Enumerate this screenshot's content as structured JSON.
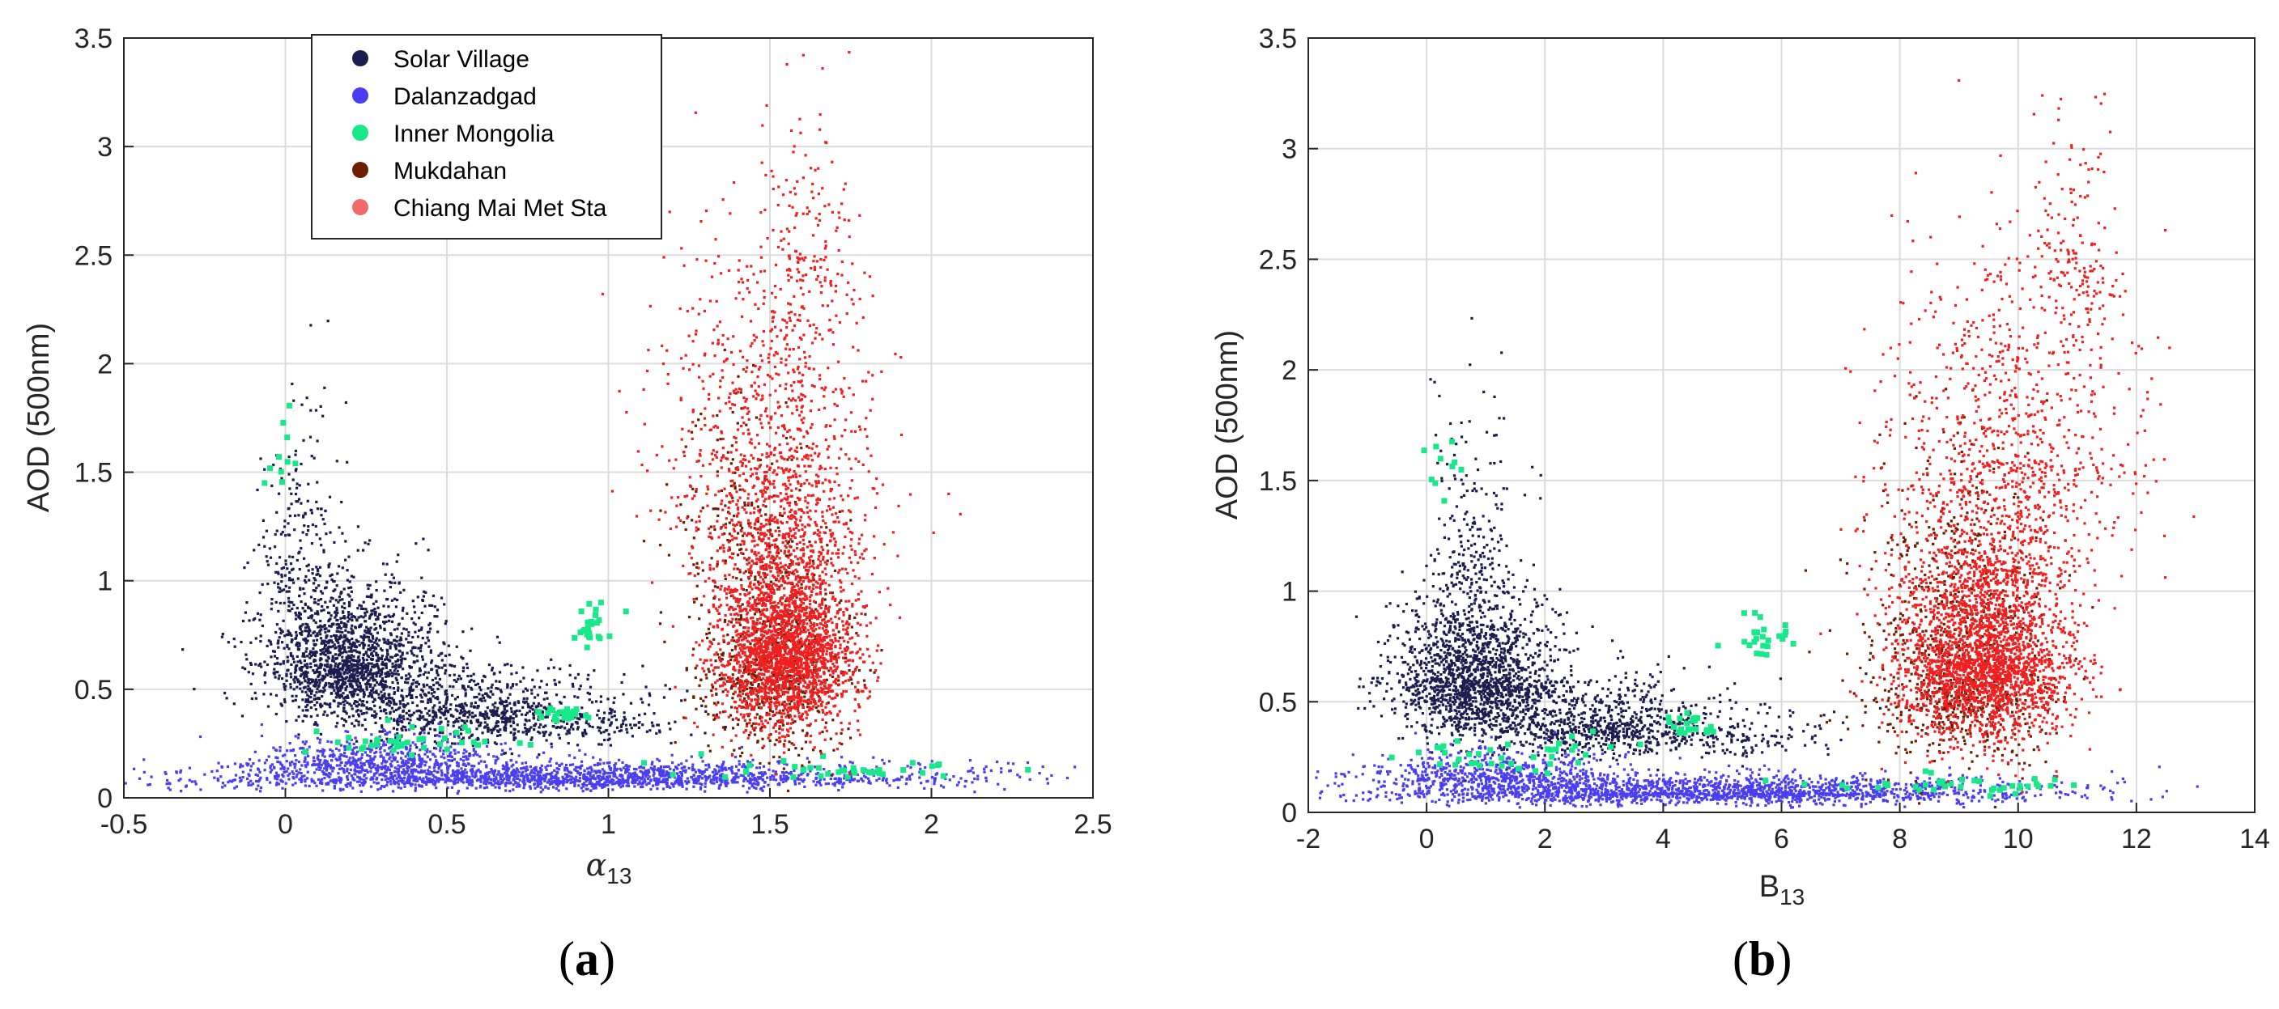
{
  "chart_data": [
    {
      "panel": "(a)",
      "type": "scatter",
      "xlabel": "α",
      "xlabel_sub": "13",
      "ylabel": "AOD (500nm)",
      "xlim": [
        -0.5,
        2.5
      ],
      "ylim": [
        0,
        3.5
      ],
      "xticks": [
        "-0.5",
        "0",
        "0.5",
        "1",
        "1.5",
        "2",
        "2.5"
      ],
      "xtick_values": [
        -0.5,
        0,
        0.5,
        1,
        1.5,
        2,
        2.5
      ],
      "yticks": [
        "0",
        "0.5",
        "1",
        "1.5",
        "2",
        "2.5",
        "3",
        "3.5"
      ],
      "ytick_values": [
        0,
        0.5,
        1,
        1.5,
        2,
        2.5,
        3,
        3.5
      ],
      "grid": true,
      "legend_position": "top-left",
      "series": [
        {
          "name": "Solar Village",
          "color": "#1c1c4e",
          "cloud": [
            {
              "x": 0.2,
              "y": 0.62,
              "sx": 0.14,
              "sy": 0.2,
              "n": 1600
            },
            {
              "x": 0.55,
              "y": 0.4,
              "sx": 0.2,
              "sy": 0.12,
              "n": 700
            },
            {
              "x": 0.05,
              "y": 1.1,
              "sx": 0.06,
              "sy": 0.35,
              "n": 220
            },
            {
              "x": 0.9,
              "y": 0.35,
              "sx": 0.2,
              "sy": 0.08,
              "n": 200
            }
          ]
        },
        {
          "name": "Dalanzadgad",
          "color": "#4a3ef0",
          "cloud": [
            {
              "x": 0.9,
              "y": 0.09,
              "sx": 0.55,
              "sy": 0.04,
              "n": 1900
            },
            {
              "x": 0.3,
              "y": 0.18,
              "sx": 0.2,
              "sy": 0.06,
              "n": 500
            }
          ]
        },
        {
          "name": "Inner Mongolia",
          "color": "#19e88a",
          "cloud": [
            {
              "x": 0.95,
              "y": 0.78,
              "sx": 0.03,
              "sy": 0.06,
              "n": 25
            },
            {
              "x": 0.87,
              "y": 0.38,
              "sx": 0.04,
              "sy": 0.03,
              "n": 25
            },
            {
              "x": 0.35,
              "y": 0.25,
              "sx": 0.15,
              "sy": 0.05,
              "n": 40
            },
            {
              "x": 1.7,
              "y": 0.13,
              "sx": 0.2,
              "sy": 0.03,
              "n": 40
            },
            {
              "x": 0.0,
              "y": 1.6,
              "sx": 0.03,
              "sy": 0.2,
              "n": 10
            }
          ]
        },
        {
          "name": "Mukdahan",
          "color": "#6e1e00",
          "cloud": [
            {
              "x": 1.5,
              "y": 0.6,
              "sx": 0.12,
              "sy": 0.3,
              "n": 700
            },
            {
              "x": 1.4,
              "y": 1.3,
              "sx": 0.1,
              "sy": 0.3,
              "n": 120
            }
          ]
        },
        {
          "name": "Chiang Mai Met Sta",
          "color": "#f02020",
          "cloud": [
            {
              "x": 1.55,
              "y": 0.7,
              "sx": 0.11,
              "sy": 0.3,
              "n": 2600
            },
            {
              "x": 1.5,
              "y": 1.6,
              "sx": 0.16,
              "sy": 0.5,
              "n": 900
            },
            {
              "x": 1.62,
              "y": 2.5,
              "sx": 0.08,
              "sy": 0.35,
              "n": 150
            }
          ]
        }
      ]
    },
    {
      "panel": "(b)",
      "type": "scatter",
      "xlabel": "B",
      "xlabel_sub": "13",
      "ylabel": "AOD (500nm)",
      "xlim": [
        -2,
        14
      ],
      "ylim": [
        0,
        3.5
      ],
      "xticks": [
        "-2",
        "0",
        "2",
        "4",
        "6",
        "8",
        "10",
        "12",
        "14"
      ],
      "xtick_values": [
        -2,
        0,
        2,
        4,
        6,
        8,
        10,
        12,
        14
      ],
      "yticks": [
        "0",
        "0.5",
        "1",
        "1.5",
        "2",
        "2.5",
        "3",
        "3.5"
      ],
      "ytick_values": [
        0,
        0.5,
        1,
        1.5,
        2,
        2.5,
        3,
        3.5
      ],
      "grid": true,
      "series": [
        {
          "name": "Solar Village",
          "color": "#1c1c4e",
          "cloud": [
            {
              "x": 0.8,
              "y": 0.6,
              "sx": 0.7,
              "sy": 0.2,
              "n": 1600
            },
            {
              "x": 2.8,
              "y": 0.4,
              "sx": 1.0,
              "sy": 0.12,
              "n": 700
            },
            {
              "x": 0.8,
              "y": 1.2,
              "sx": 0.4,
              "sy": 0.4,
              "n": 220
            },
            {
              "x": 4.8,
              "y": 0.35,
              "sx": 1.0,
              "sy": 0.08,
              "n": 200
            }
          ]
        },
        {
          "name": "Dalanzadgad",
          "color": "#4a3ef0",
          "cloud": [
            {
              "x": 4.5,
              "y": 0.09,
              "sx": 2.8,
              "sy": 0.04,
              "n": 1900
            },
            {
              "x": 1.2,
              "y": 0.18,
              "sx": 1.0,
              "sy": 0.06,
              "n": 500
            }
          ]
        },
        {
          "name": "Inner Mongolia",
          "color": "#19e88a",
          "cloud": [
            {
              "x": 5.6,
              "y": 0.78,
              "sx": 0.3,
              "sy": 0.06,
              "n": 25
            },
            {
              "x": 4.4,
              "y": 0.38,
              "sx": 0.25,
              "sy": 0.03,
              "n": 25
            },
            {
              "x": 1.6,
              "y": 0.25,
              "sx": 0.9,
              "sy": 0.05,
              "n": 40
            },
            {
              "x": 9.0,
              "y": 0.12,
              "sx": 1.0,
              "sy": 0.03,
              "n": 40
            },
            {
              "x": 0.3,
              "y": 1.6,
              "sx": 0.15,
              "sy": 0.2,
              "n": 10
            }
          ]
        },
        {
          "name": "Mukdahan",
          "color": "#6e1e00",
          "cloud": [
            {
              "x": 9.0,
              "y": 0.6,
              "sx": 0.8,
              "sy": 0.3,
              "n": 700
            },
            {
              "x": 8.8,
              "y": 1.3,
              "sx": 0.6,
              "sy": 0.3,
              "n": 120
            }
          ]
        },
        {
          "name": "Chiang Mai Met Sta",
          "color": "#f02020",
          "cloud": [
            {
              "x": 9.4,
              "y": 0.7,
              "sx": 0.75,
              "sy": 0.3,
              "n": 2600
            },
            {
              "x": 9.8,
              "y": 1.6,
              "sx": 1.0,
              "sy": 0.5,
              "n": 900
            },
            {
              "x": 11.0,
              "y": 2.5,
              "sx": 0.4,
              "sy": 0.35,
              "n": 150
            }
          ]
        }
      ]
    }
  ]
}
